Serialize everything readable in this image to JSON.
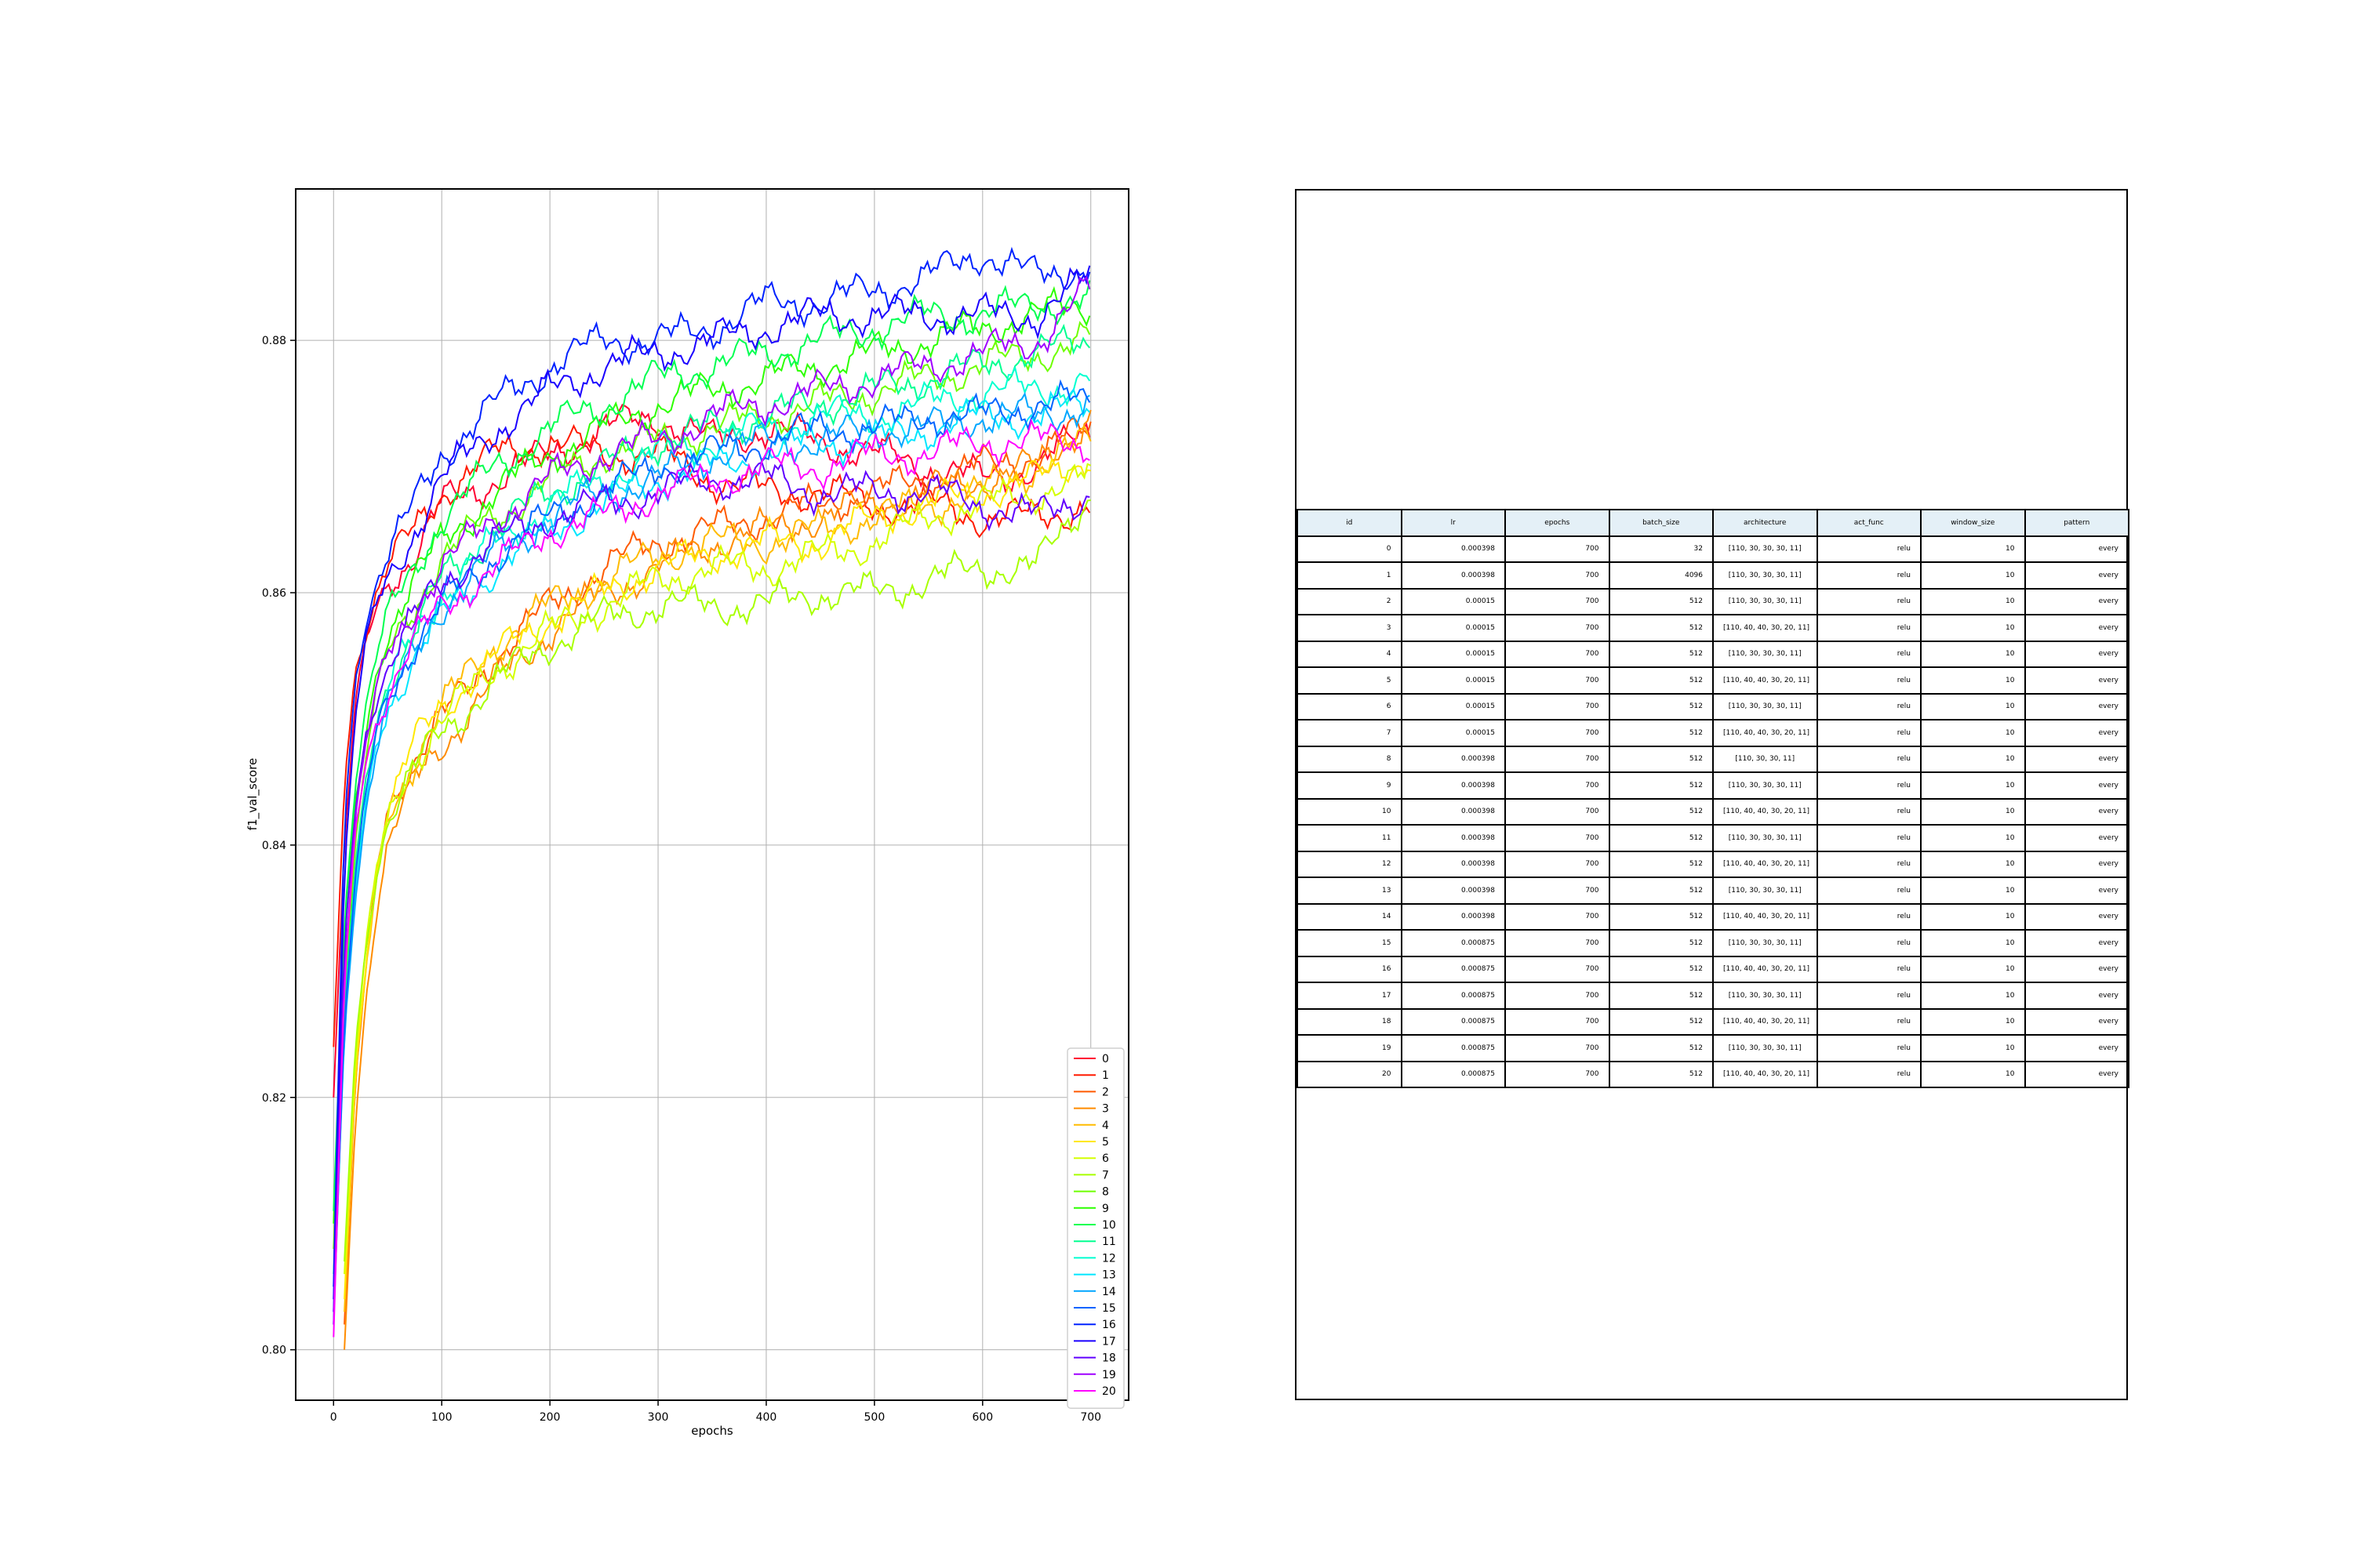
{
  "chart_data": {
    "type": "line",
    "title": "",
    "xlabel": "epochs",
    "ylabel": "f1_val_score",
    "xlim": [
      -35,
      735
    ],
    "ylim": [
      0.796,
      0.892
    ],
    "xticks": [
      0,
      100,
      200,
      300,
      400,
      500,
      600,
      700
    ],
    "yticks": [
      0.8,
      0.82,
      0.84,
      0.86,
      0.88
    ],
    "ytick_labels": [
      "0.80",
      "0.82",
      "0.84",
      "0.86",
      "0.88"
    ],
    "grid": true,
    "legend_position": "bottom-right",
    "x_points": [
      0,
      10,
      20,
      30,
      40,
      50,
      75,
      100,
      150,
      200,
      250,
      300,
      350,
      400,
      450,
      500,
      550,
      600,
      650,
      700
    ],
    "series": [
      {
        "name": "0",
        "color": "#ff0032",
        "x_start": 0,
        "values": [
          0.82,
          0.84,
          0.851,
          0.856,
          0.859,
          0.861,
          0.863,
          0.867,
          0.869,
          0.871,
          0.873,
          0.874,
          0.872,
          0.873,
          0.872,
          0.871,
          0.87,
          0.869,
          0.87,
          0.873
        ]
      },
      {
        "name": "1",
        "color": "#ff1a00",
        "x_start": 0,
        "values": [
          0.824,
          0.845,
          0.854,
          0.857,
          0.86,
          0.862,
          0.865,
          0.868,
          0.871,
          0.872,
          0.871,
          0.871,
          0.869,
          0.868,
          0.868,
          0.867,
          0.867,
          0.866,
          0.866,
          0.867
        ]
      },
      {
        "name": "2",
        "color": "#ff5a00",
        "x_start": 10,
        "values": [
          null,
          0.802,
          0.821,
          0.83,
          0.838,
          0.843,
          0.847,
          0.85,
          0.855,
          0.859,
          0.862,
          0.864,
          0.865,
          0.866,
          0.867,
          0.868,
          0.869,
          0.87,
          0.871,
          0.873
        ]
      },
      {
        "name": "3",
        "color": "#ff8c00",
        "x_start": 10,
        "values": [
          null,
          0.8,
          0.818,
          0.828,
          0.835,
          0.84,
          0.845,
          0.848,
          0.853,
          0.857,
          0.86,
          0.862,
          0.864,
          0.865,
          0.866,
          0.867,
          0.868,
          0.869,
          0.87,
          0.874
        ]
      },
      {
        "name": "4",
        "color": "#ffbb00",
        "x_start": 10,
        "values": [
          null,
          0.803,
          0.821,
          0.83,
          0.837,
          0.842,
          0.847,
          0.851,
          0.856,
          0.859,
          0.861,
          0.863,
          0.864,
          0.864,
          0.865,
          0.866,
          0.867,
          0.868,
          0.87,
          0.872
        ]
      },
      {
        "name": "5",
        "color": "#ffe800",
        "x_start": 10,
        "values": [
          null,
          0.804,
          0.822,
          0.831,
          0.838,
          0.843,
          0.848,
          0.851,
          0.855,
          0.858,
          0.86,
          0.862,
          0.863,
          0.864,
          0.864,
          0.866,
          0.867,
          0.868,
          0.869,
          0.871
        ]
      },
      {
        "name": "6",
        "color": "#d4ff00",
        "x_start": 10,
        "values": [
          null,
          0.806,
          0.823,
          0.832,
          0.838,
          0.842,
          0.847,
          0.85,
          0.854,
          0.857,
          0.859,
          0.861,
          0.862,
          0.862,
          0.863,
          0.864,
          0.866,
          0.867,
          0.868,
          0.869
        ]
      },
      {
        "name": "7",
        "color": "#a8ff00",
        "x_start": 10,
        "values": [
          null,
          0.807,
          0.824,
          0.832,
          0.838,
          0.842,
          0.846,
          0.849,
          0.853,
          0.856,
          0.858,
          0.859,
          0.859,
          0.859,
          0.86,
          0.86,
          0.861,
          0.862,
          0.862,
          0.868
        ]
      },
      {
        "name": "8",
        "color": "#6eff00",
        "x_start": 0,
        "values": [
          0.808,
          0.828,
          0.84,
          0.847,
          0.852,
          0.855,
          0.859,
          0.863,
          0.866,
          0.869,
          0.871,
          0.872,
          0.873,
          0.874,
          0.875,
          0.876,
          0.877,
          0.878,
          0.879,
          0.88
        ]
      },
      {
        "name": "9",
        "color": "#2cff00",
        "x_start": 0,
        "values": [
          0.81,
          0.832,
          0.843,
          0.849,
          0.854,
          0.857,
          0.861,
          0.864,
          0.868,
          0.871,
          0.873,
          0.875,
          0.876,
          0.877,
          0.878,
          0.879,
          0.88,
          0.881,
          0.882,
          0.883
        ]
      },
      {
        "name": "10",
        "color": "#00ff50",
        "x_start": 0,
        "values": [
          0.811,
          0.834,
          0.845,
          0.851,
          0.855,
          0.858,
          0.862,
          0.866,
          0.87,
          0.873,
          0.875,
          0.877,
          0.878,
          0.879,
          0.88,
          0.881,
          0.882,
          0.882,
          0.883,
          0.883
        ]
      },
      {
        "name": "11",
        "color": "#00ff90",
        "x_start": 0,
        "values": [
          0.806,
          0.827,
          0.838,
          0.845,
          0.85,
          0.853,
          0.857,
          0.861,
          0.865,
          0.868,
          0.87,
          0.872,
          0.873,
          0.874,
          0.875,
          0.876,
          0.877,
          0.878,
          0.879,
          0.88
        ]
      },
      {
        "name": "12",
        "color": "#00ffd0",
        "x_start": 0,
        "values": [
          0.805,
          0.826,
          0.837,
          0.844,
          0.849,
          0.852,
          0.857,
          0.86,
          0.864,
          0.867,
          0.869,
          0.871,
          0.872,
          0.873,
          0.874,
          0.874,
          0.875,
          0.876,
          0.876,
          0.877
        ]
      },
      {
        "name": "13",
        "color": "#00e6ff",
        "x_start": 0,
        "values": [
          0.804,
          0.825,
          0.836,
          0.843,
          0.848,
          0.851,
          0.855,
          0.858,
          0.862,
          0.865,
          0.867,
          0.869,
          0.87,
          0.871,
          0.872,
          0.872,
          0.873,
          0.874,
          0.874,
          0.875
        ]
      },
      {
        "name": "14",
        "color": "#00a6ff",
        "x_start": 0,
        "values": [
          0.803,
          0.825,
          0.836,
          0.843,
          0.848,
          0.851,
          0.855,
          0.859,
          0.863,
          0.866,
          0.868,
          0.869,
          0.871,
          0.872,
          0.872,
          0.873,
          0.873,
          0.874,
          0.874,
          0.875
        ]
      },
      {
        "name": "15",
        "color": "#0064ff",
        "x_start": 0,
        "values": [
          0.802,
          0.826,
          0.837,
          0.844,
          0.849,
          0.852,
          0.856,
          0.859,
          0.863,
          0.866,
          0.868,
          0.87,
          0.871,
          0.872,
          0.873,
          0.873,
          0.874,
          0.874,
          0.875,
          0.875
        ]
      },
      {
        "name": "16",
        "color": "#0022ff",
        "x_start": 0,
        "values": [
          0.805,
          0.842,
          0.853,
          0.858,
          0.861,
          0.863,
          0.867,
          0.871,
          0.875,
          0.878,
          0.88,
          0.88,
          0.881,
          0.883,
          0.883,
          0.884,
          0.885,
          0.887,
          0.885,
          0.886
        ]
      },
      {
        "name": "17",
        "color": "#1a00ff",
        "x_start": 0,
        "values": [
          0.804,
          0.838,
          0.85,
          0.856,
          0.859,
          0.861,
          0.865,
          0.869,
          0.873,
          0.876,
          0.878,
          0.879,
          0.88,
          0.881,
          0.882,
          0.882,
          0.882,
          0.882,
          0.882,
          0.885
        ]
      },
      {
        "name": "18",
        "color": "#6000ff",
        "x_start": 0,
        "values": [
          0.803,
          0.832,
          0.843,
          0.849,
          0.852,
          0.854,
          0.858,
          0.861,
          0.864,
          0.866,
          0.867,
          0.868,
          0.869,
          0.869,
          0.868,
          0.868,
          0.868,
          0.867,
          0.866,
          0.868
        ]
      },
      {
        "name": "19",
        "color": "#a000ff",
        "x_start": 0,
        "values": [
          0.802,
          0.83,
          0.842,
          0.848,
          0.852,
          0.855,
          0.859,
          0.862,
          0.866,
          0.869,
          0.871,
          0.872,
          0.874,
          0.875,
          0.876,
          0.877,
          0.878,
          0.879,
          0.88,
          0.884
        ]
      },
      {
        "name": "20",
        "color": "#ff00ff",
        "x_start": 0,
        "values": [
          0.801,
          0.829,
          0.841,
          0.847,
          0.85,
          0.852,
          0.856,
          0.859,
          0.862,
          0.865,
          0.866,
          0.868,
          0.869,
          0.87,
          0.87,
          0.871,
          0.871,
          0.872,
          0.872,
          0.872
        ]
      }
    ]
  },
  "table": {
    "columns": [
      "id",
      "lr",
      "epochs",
      "batch_size",
      "architecture",
      "act_func",
      "window_size",
      "pattern"
    ],
    "rows": [
      [
        "0",
        "0.000398",
        "700",
        "32",
        "[110, 30, 30, 30, 11]",
        "relu",
        "10",
        "every"
      ],
      [
        "1",
        "0.000398",
        "700",
        "4096",
        "[110, 30, 30, 30, 11]",
        "relu",
        "10",
        "every"
      ],
      [
        "2",
        "0.00015",
        "700",
        "512",
        "[110, 30, 30, 30, 11]",
        "relu",
        "10",
        "every"
      ],
      [
        "3",
        "0.00015",
        "700",
        "512",
        "[110, 40, 40, 30, 20, 11]",
        "relu",
        "10",
        "every"
      ],
      [
        "4",
        "0.00015",
        "700",
        "512",
        "[110, 30, 30, 30, 11]",
        "relu",
        "10",
        "every"
      ],
      [
        "5",
        "0.00015",
        "700",
        "512",
        "[110, 40, 40, 30, 20, 11]",
        "relu",
        "10",
        "every"
      ],
      [
        "6",
        "0.00015",
        "700",
        "512",
        "[110, 30, 30, 30, 11]",
        "relu",
        "10",
        "every"
      ],
      [
        "7",
        "0.00015",
        "700",
        "512",
        "[110, 40, 40, 30, 20, 11]",
        "relu",
        "10",
        "every"
      ],
      [
        "8",
        "0.000398",
        "700",
        "512",
        "[110, 30, 30, 11]",
        "relu",
        "10",
        "every"
      ],
      [
        "9",
        "0.000398",
        "700",
        "512",
        "[110, 30, 30, 30, 11]",
        "relu",
        "10",
        "every"
      ],
      [
        "10",
        "0.000398",
        "700",
        "512",
        "[110, 40, 40, 30, 20, 11]",
        "relu",
        "10",
        "every"
      ],
      [
        "11",
        "0.000398",
        "700",
        "512",
        "[110, 30, 30, 30, 11]",
        "relu",
        "10",
        "every"
      ],
      [
        "12",
        "0.000398",
        "700",
        "512",
        "[110, 40, 40, 30, 20, 11]",
        "relu",
        "10",
        "every"
      ],
      [
        "13",
        "0.000398",
        "700",
        "512",
        "[110, 30, 30, 30, 11]",
        "relu",
        "10",
        "every"
      ],
      [
        "14",
        "0.000398",
        "700",
        "512",
        "[110, 40, 40, 30, 20, 11]",
        "relu",
        "10",
        "every"
      ],
      [
        "15",
        "0.000875",
        "700",
        "512",
        "[110, 30, 30, 30, 11]",
        "relu",
        "10",
        "every"
      ],
      [
        "16",
        "0.000875",
        "700",
        "512",
        "[110, 40, 40, 30, 20, 11]",
        "relu",
        "10",
        "every"
      ],
      [
        "17",
        "0.000875",
        "700",
        "512",
        "[110, 30, 30, 30, 11]",
        "relu",
        "10",
        "every"
      ],
      [
        "18",
        "0.000875",
        "700",
        "512",
        "[110, 40, 40, 30, 20, 11]",
        "relu",
        "10",
        "every"
      ],
      [
        "19",
        "0.000875",
        "700",
        "512",
        "[110, 30, 30, 30, 11]",
        "relu",
        "10",
        "every"
      ],
      [
        "20",
        "0.000875",
        "700",
        "512",
        "[110, 40, 40, 30, 20, 11]",
        "relu",
        "10",
        "every"
      ]
    ]
  }
}
